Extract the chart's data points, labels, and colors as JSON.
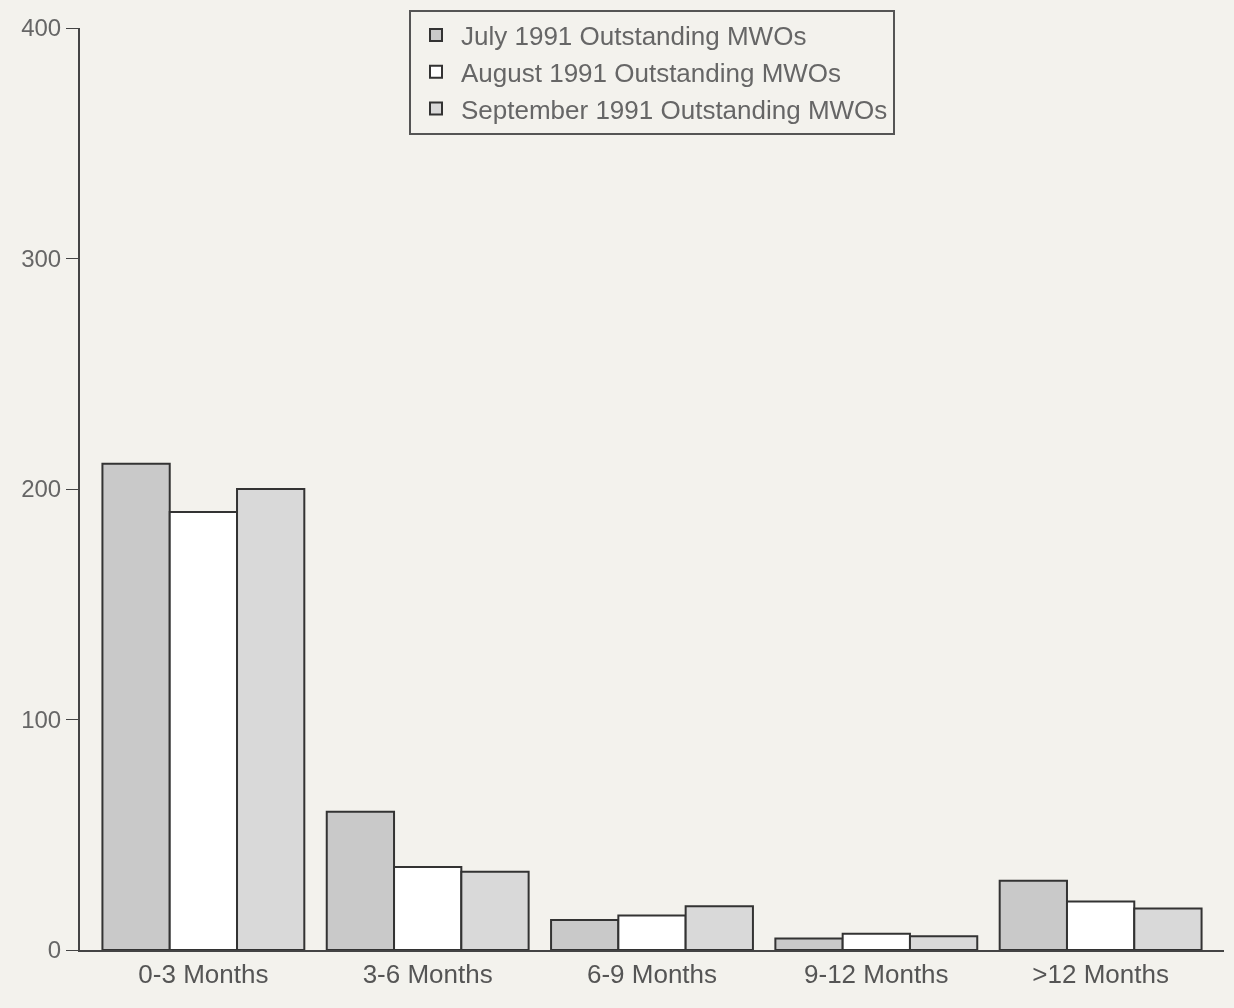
{
  "chart_data": {
    "type": "bar",
    "categories": [
      "0-3 Months",
      "3-6 Months",
      "6-9 Months",
      "9-12 Months",
      ">12 Months"
    ],
    "series": [
      {
        "name": "July 1991 Outstanding MWOs",
        "color": "#c9c9c9",
        "values": [
          211,
          60,
          13,
          5,
          30
        ]
      },
      {
        "name": "August 1991 Outstanding MWOs",
        "color": "#ffffff",
        "values": [
          190,
          36,
          15,
          7,
          21
        ]
      },
      {
        "name": "September 1991 Outstanding MWOs",
        "color": "#d9d9d9",
        "values": [
          200,
          34,
          19,
          6,
          18
        ]
      }
    ],
    "ylim": [
      0,
      400
    ],
    "yticks": [
      0,
      100,
      200,
      300,
      400
    ],
    "grid": false,
    "legend": "top"
  }
}
